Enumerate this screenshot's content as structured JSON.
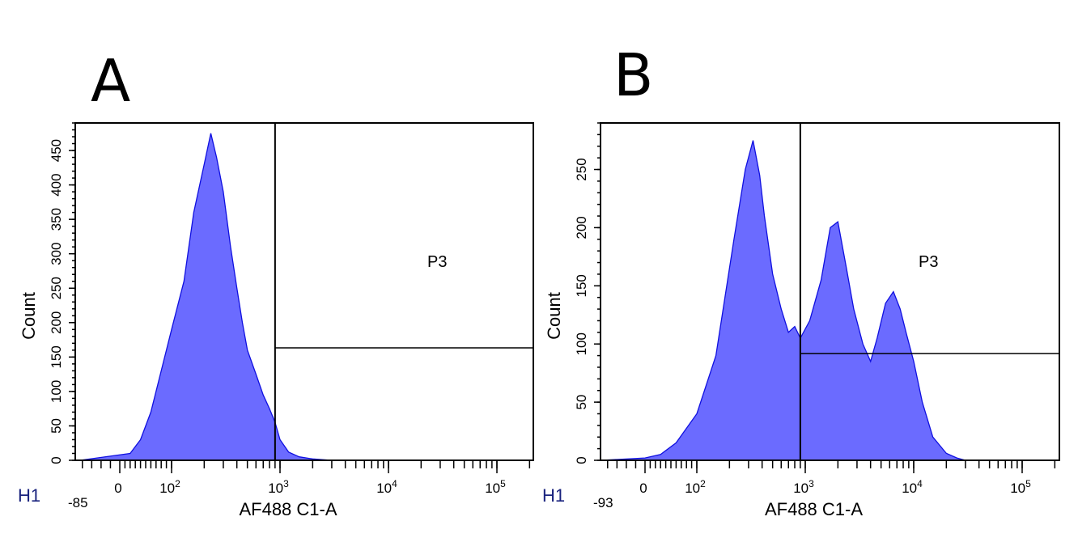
{
  "chart_data": [
    {
      "type": "histogram",
      "panel_label": "A",
      "histogram_name": "H1",
      "xlabel": "AF488 C1-A",
      "ylabel": "Count",
      "x_scale": "biexponential",
      "x_min_label": "-85",
      "x_ticks": [
        {
          "value": 0,
          "label": "0"
        },
        {
          "value": 100,
          "label": "10",
          "sup": "2"
        },
        {
          "value": 1000,
          "label": "10",
          "sup": "3"
        },
        {
          "value": 10000,
          "label": "10",
          "sup": "4"
        },
        {
          "value": 100000,
          "label": "10",
          "sup": "5"
        }
      ],
      "ylim": [
        0,
        490
      ],
      "y_ticks": [
        0,
        50,
        100,
        150,
        200,
        250,
        300,
        350,
        400,
        450
      ],
      "gate": {
        "name": "P3",
        "x_start": 900,
        "x_end": 250000
      },
      "x": [
        -85,
        20,
        40,
        60,
        80,
        100,
        130,
        160,
        200,
        230,
        260,
        300,
        350,
        400,
        450,
        500,
        600,
        700,
        800,
        900,
        1000,
        1200,
        1500,
        2000,
        3000
      ],
      "counts": [
        0,
        10,
        30,
        70,
        130,
        190,
        260,
        360,
        430,
        475,
        440,
        390,
        310,
        250,
        200,
        160,
        125,
        95,
        75,
        55,
        30,
        12,
        5,
        2,
        0
      ]
    },
    {
      "type": "histogram",
      "panel_label": "B",
      "histogram_name": "H1",
      "xlabel": "AF488 C1-A",
      "ylabel": "Count",
      "x_scale": "biexponential",
      "x_min_label": "-93",
      "x_ticks": [
        {
          "value": 0,
          "label": "0"
        },
        {
          "value": 100,
          "label": "10",
          "sup": "2"
        },
        {
          "value": 1000,
          "label": "10",
          "sup": "3"
        },
        {
          "value": 10000,
          "label": "10",
          "sup": "4"
        },
        {
          "value": 100000,
          "label": "10",
          "sup": "5"
        }
      ],
      "ylim": [
        0,
        290
      ],
      "y_ticks": [
        0,
        50,
        100,
        150,
        200,
        250
      ],
      "gate": {
        "name": "P3",
        "x_start": 900,
        "x_end": 250000
      },
      "x": [
        -93,
        0,
        30,
        60,
        100,
        150,
        220,
        280,
        330,
        380,
        420,
        500,
        600,
        700,
        800,
        900,
        1100,
        1400,
        1700,
        2000,
        2400,
        2800,
        3400,
        4000,
        4600,
        5500,
        6500,
        7500,
        8500,
        10000,
        12000,
        15000,
        20000,
        25000,
        30000
      ],
      "counts": [
        0,
        2,
        5,
        15,
        40,
        90,
        190,
        250,
        275,
        245,
        210,
        160,
        130,
        110,
        115,
        105,
        120,
        155,
        200,
        205,
        165,
        130,
        100,
        85,
        105,
        135,
        145,
        130,
        110,
        85,
        50,
        20,
        6,
        2,
        0
      ]
    }
  ]
}
